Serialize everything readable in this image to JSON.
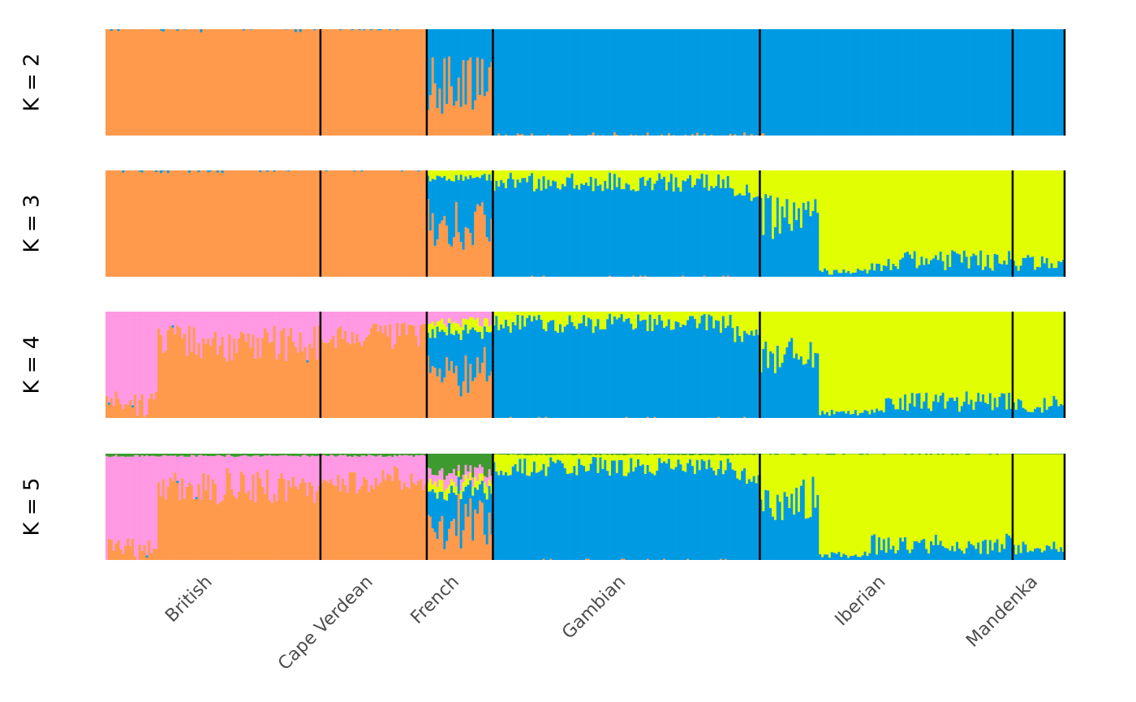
{
  "chart_data": {
    "type": "admixture-barplot",
    "title": "",
    "populations": [
      {
        "name": "British",
        "samples": 91
      },
      {
        "name": "Cape Verdean",
        "samples": 45
      },
      {
        "name": "French",
        "samples": 28
      },
      {
        "name": "Gambian",
        "samples": 113
      },
      {
        "name": "Iberian",
        "samples": 107
      },
      {
        "name": "Mandenka",
        "samples": 22
      }
    ],
    "panels": [
      {
        "label": "K = 2",
        "k": 2
      },
      {
        "label": "K = 3",
        "k": 3
      },
      {
        "label": "K = 4",
        "k": 4
      },
      {
        "label": "K = 5",
        "k": 5
      }
    ],
    "component_colors": {
      "european": "#FF9A4D",
      "african": "#009AE3",
      "iberian_african": "#E1FF00",
      "northern_european": "#FF99E3",
      "french": "#3D9A2E"
    },
    "y_range": [
      0,
      1
    ]
  }
}
